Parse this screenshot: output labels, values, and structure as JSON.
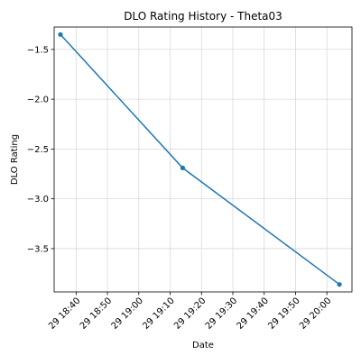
{
  "chart_data": {
    "type": "line",
    "title": "DLO Rating History - Theta03",
    "xlabel": "Date",
    "ylabel": "DLO Rating",
    "x_tick_labels": [
      "29 18:40",
      "29 18:50",
      "29 19:00",
      "29 19:10",
      "29 19:20",
      "29 19:30",
      "29 19:40",
      "29 19:50",
      "29 20:00"
    ],
    "x_tick_times": [
      "18:40",
      "18:50",
      "19:00",
      "19:10",
      "19:20",
      "19:30",
      "19:40",
      "19:50",
      "20:00"
    ],
    "y_ticks": [
      -1.5,
      -2.0,
      -2.5,
      -3.0,
      -3.5
    ],
    "y_tick_labels": [
      "−1.5",
      "−2.0",
      "−2.5",
      "−3.0",
      "−3.5"
    ],
    "xlim": [
      "18:33",
      "20:08"
    ],
    "ylim": [
      -3.935,
      -1.275
    ],
    "grid": true,
    "series": [
      {
        "color": "#1f77b4",
        "marker": "circle",
        "points": [
          {
            "x": "18:35",
            "y": -1.35
          },
          {
            "x": "19:14",
            "y": -2.69
          },
          {
            "x": "20:04",
            "y": -3.86
          }
        ]
      }
    ]
  }
}
